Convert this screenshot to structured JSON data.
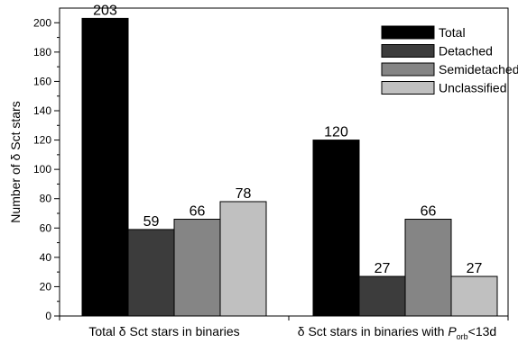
{
  "chart_data": {
    "type": "bar",
    "categories": [
      [
        "Total ",
        "δ",
        " Sct stars in binaries"
      ],
      [
        "δ",
        " Sct stars in binaries with ",
        "P",
        "orb",
        "<13d"
      ]
    ],
    "series": [
      {
        "name": "Total",
        "color": "#000000",
        "values": [
          203,
          120
        ]
      },
      {
        "name": "Detached",
        "color": "#3c3c3c",
        "values": [
          59,
          27
        ]
      },
      {
        "name": "Semidetached",
        "color": "#858585",
        "values": [
          66,
          66
        ]
      },
      {
        "name": "Unclassified",
        "color": "#c0c0c0",
        "values": [
          78,
          27
        ]
      }
    ],
    "ylabel_parts": [
      "Number of ",
      "δ",
      " Sct stars"
    ],
    "ylim": [
      0,
      210
    ],
    "yticks": [
      0,
      20,
      40,
      60,
      80,
      100,
      120,
      140,
      160,
      180,
      200
    ],
    "legend_position": "top-right",
    "grid": false
  }
}
